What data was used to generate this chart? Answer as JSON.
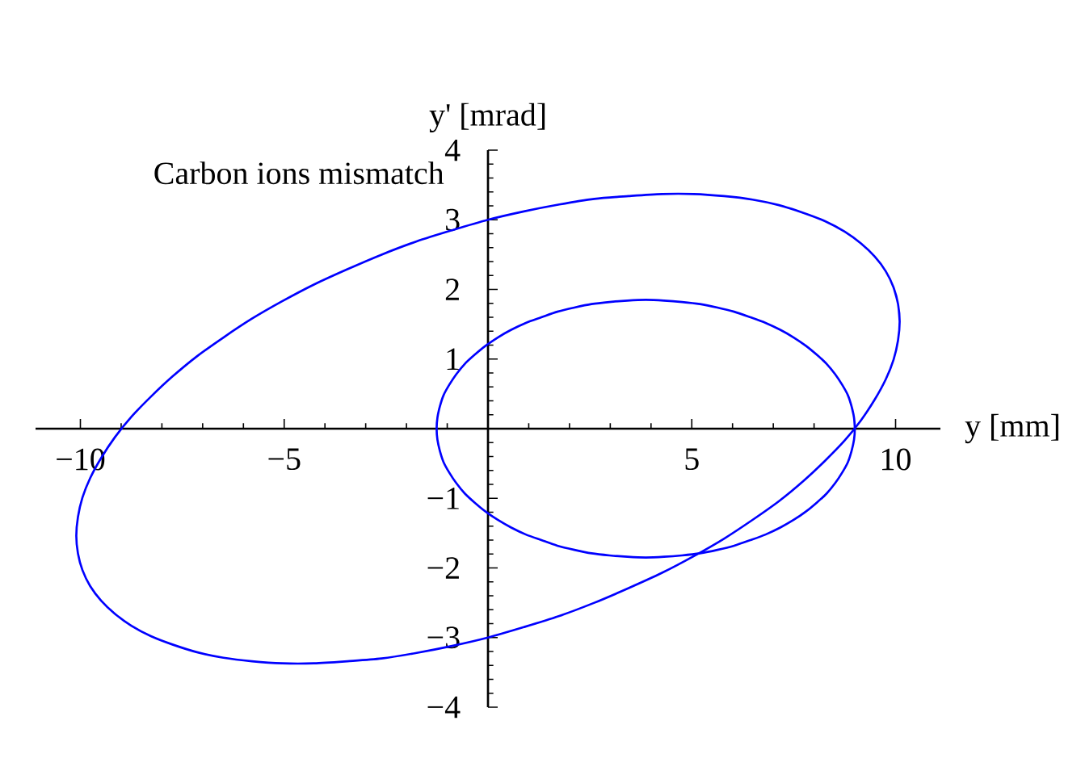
{
  "chart_data": {
    "type": "line",
    "title": "Carbon ions mismatch",
    "xlabel": "y [mm]",
    "ylabel": "y' [mrad]",
    "xlim": [
      -11.1,
      11.1
    ],
    "ylim": [
      -4,
      4
    ],
    "xticks": [
      {
        "value": -10,
        "label": "−10"
      },
      {
        "value": -9,
        "label": null
      },
      {
        "value": -8,
        "label": null
      },
      {
        "value": -7,
        "label": null
      },
      {
        "value": -6,
        "label": null
      },
      {
        "value": -5,
        "label": "−5"
      },
      {
        "value": -4,
        "label": null
      },
      {
        "value": -3,
        "label": null
      },
      {
        "value": -2,
        "label": null
      },
      {
        "value": -1,
        "label": null
      },
      {
        "value": 1,
        "label": null
      },
      {
        "value": 2,
        "label": null
      },
      {
        "value": 3,
        "label": null
      },
      {
        "value": 4,
        "label": null
      },
      5,
      {
        "value": 6,
        "label": null
      },
      {
        "value": 7,
        "label": null
      },
      {
        "value": 8,
        "label": null
      },
      {
        "value": 9,
        "label": null
      },
      10
    ],
    "yticks": [
      {
        "value": -4,
        "label": "−4"
      },
      {
        "value": -3.8,
        "label": null
      },
      {
        "value": -3.6,
        "label": null
      },
      {
        "value": -3.4,
        "label": null
      },
      {
        "value": -3.2,
        "label": null
      },
      {
        "value": -3,
        "label": "−3"
      },
      {
        "value": -2.8,
        "label": null
      },
      {
        "value": -2.6,
        "label": null
      },
      {
        "value": -2.4,
        "label": null
      },
      {
        "value": -2.2,
        "label": null
      },
      {
        "value": -2,
        "label": "−2"
      },
      {
        "value": -1.8,
        "label": null
      },
      {
        "value": -1.6,
        "label": null
      },
      {
        "value": -1.4,
        "label": null
      },
      {
        "value": -1.2,
        "label": null
      },
      {
        "value": -1,
        "label": "−1"
      },
      {
        "value": -0.8,
        "label": null
      },
      {
        "value": -0.6,
        "label": null
      },
      {
        "value": -0.4,
        "label": null
      },
      {
        "value": -0.2,
        "label": null
      },
      {
        "value": 0.2,
        "label": null
      },
      {
        "value": 0.4,
        "label": null
      },
      {
        "value": 0.6,
        "label": null
      },
      {
        "value": 0.8,
        "label": null
      },
      1,
      {
        "value": 1.2,
        "label": null
      },
      {
        "value": 1.4,
        "label": null
      },
      {
        "value": 1.6,
        "label": null
      },
      {
        "value": 1.8,
        "label": null
      },
      2,
      {
        "value": 2.2,
        "label": null
      },
      {
        "value": 2.4,
        "label": null
      },
      {
        "value": 2.6,
        "label": null
      },
      {
        "value": 2.8,
        "label": null
      },
      3,
      {
        "value": 3.2,
        "label": null
      },
      {
        "value": 3.4,
        "label": null
      },
      {
        "value": 3.6,
        "label": null
      },
      {
        "value": 3.8,
        "label": null
      },
      4
    ],
    "marker": "none",
    "line_style": "solid",
    "series": [
      {
        "color": "#0000ff",
        "x": [
          10.1,
          10.06,
          9.95,
          9.76,
          9.49,
          9.15,
          8.75,
          8.27,
          7.74,
          7.14,
          6.49,
          5.79,
          5.05,
          4.27,
          3.45,
          2.61,
          1.75,
          0.88,
          0,
          -0.88,
          -1.75,
          -2.61,
          -3.45,
          -4.27,
          -5.05,
          -5.79,
          -6.49,
          -7.14,
          -7.74,
          -8.27,
          -8.75,
          -9.15,
          -9.49,
          -9.76,
          -9.95,
          -10.06,
          -10.1,
          -10.06,
          -9.95,
          -9.76,
          -9.49,
          -9.15,
          -8.75,
          -8.27,
          -7.74,
          -7.14,
          -6.49,
          -5.79,
          -5.05,
          -4.27,
          -3.45,
          -2.61,
          -1.75,
          -0.88,
          0,
          0.88,
          1.75,
          2.61,
          3.45,
          4.27,
          5.05,
          5.79,
          6.49,
          7.14,
          7.74,
          8.27,
          8.75,
          9.15,
          9.49,
          9.76,
          9.95,
          10.06,
          10.1,
          10.06,
          9.95
        ],
        "values": [
          1.54,
          1.79,
          2.03,
          2.26,
          2.47,
          2.66,
          2.83,
          2.98,
          3.1,
          3.21,
          3.29,
          3.34,
          3.37,
          3.37,
          3.34,
          3.3,
          3.22,
          3.12,
          3.0,
          2.85,
          2.69,
          2.5,
          2.29,
          2.07,
          1.83,
          1.58,
          1.31,
          1.04,
          0.75,
          0.46,
          0.17,
          -0.12,
          -0.42,
          -0.71,
          -0.99,
          -1.27,
          -1.54,
          -1.79,
          -2.03,
          -2.26,
          -2.47,
          -2.66,
          -2.83,
          -2.98,
          -3.1,
          -3.21,
          -3.29,
          -3.34,
          -3.37,
          -3.37,
          -3.34,
          -3.3,
          -3.22,
          -3.12,
          -3.0,
          -2.85,
          -2.69,
          -2.5,
          -2.29,
          -2.07,
          -1.83,
          -1.58,
          -1.31,
          -1.04,
          -0.75,
          -0.46,
          -0.17,
          0.12,
          0.42,
          0.71,
          0.99,
          1.27,
          1.54,
          1.79,
          2.03
        ]
      },
      {
        "color": "#0000ff",
        "x": [
          9.0,
          8.98,
          8.92,
          8.83,
          8.69,
          8.52,
          8.31,
          8.07,
          7.8,
          7.5,
          7.17,
          6.81,
          6.44,
          6.04,
          5.63,
          5.2,
          4.76,
          4.32,
          3.87,
          3.42,
          2.98,
          2.54,
          2.12,
          1.7,
          1.31,
          0.93,
          0.57,
          0.24,
          -0.06,
          -0.33,
          -0.57,
          -0.78,
          -0.95,
          -1.09,
          -1.18,
          -1.24,
          -1.26,
          -1.24,
          -1.18,
          -1.09,
          -0.95,
          -0.78,
          -0.57,
          -0.33,
          -0.06,
          0.24,
          0.57,
          0.93,
          1.31,
          1.7,
          2.12,
          2.54,
          2.98,
          3.42,
          3.87,
          4.32,
          4.76,
          5.2,
          5.63,
          6.04,
          6.44,
          6.81,
          7.17,
          7.5,
          7.8,
          8.07,
          8.31,
          8.52,
          8.69,
          8.83,
          8.92,
          8.98,
          9.0,
          8.98,
          8.92
        ],
        "values": [
          0,
          0.16,
          0.32,
          0.48,
          0.63,
          0.78,
          0.93,
          1.06,
          1.19,
          1.31,
          1.42,
          1.52,
          1.6,
          1.68,
          1.74,
          1.79,
          1.82,
          1.84,
          1.85,
          1.84,
          1.82,
          1.79,
          1.74,
          1.68,
          1.6,
          1.52,
          1.42,
          1.31,
          1.19,
          1.06,
          0.93,
          0.78,
          0.63,
          0.48,
          0.32,
          0.16,
          0,
          -0.16,
          -0.32,
          -0.48,
          -0.63,
          -0.78,
          -0.93,
          -1.06,
          -1.19,
          -1.31,
          -1.42,
          -1.52,
          -1.6,
          -1.68,
          -1.74,
          -1.79,
          -1.82,
          -1.84,
          -1.85,
          -1.84,
          -1.82,
          -1.79,
          -1.74,
          -1.68,
          -1.6,
          -1.52,
          -1.42,
          -1.31,
          -1.19,
          -1.06,
          -0.93,
          -0.78,
          -0.63,
          -0.48,
          -0.32,
          -0.16,
          0,
          0.16,
          0.32
        ]
      }
    ]
  }
}
